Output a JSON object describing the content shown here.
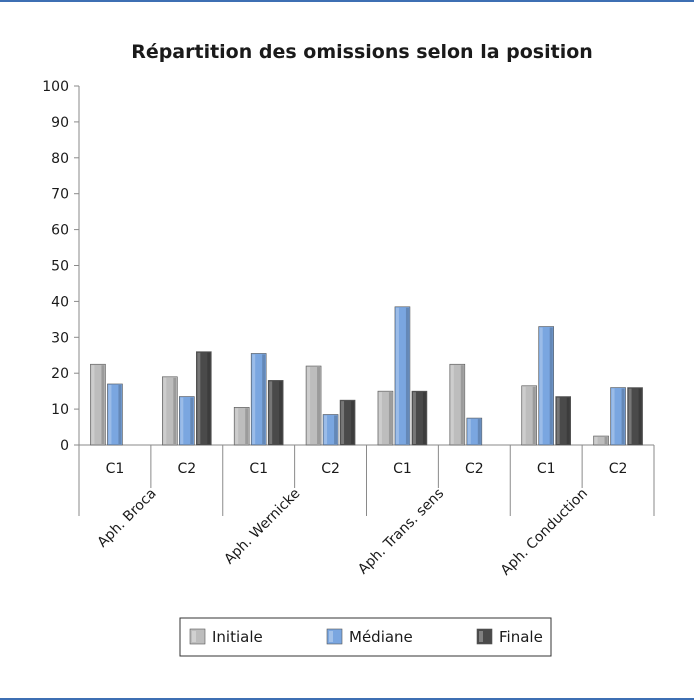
{
  "chart_data": {
    "type": "bar",
    "title": "Répartition  des omissions selon la position",
    "ylim": [
      0,
      100
    ],
    "yticks": [
      0,
      10,
      20,
      30,
      40,
      50,
      60,
      70,
      80,
      90,
      100
    ],
    "groups": [
      "Aph. Broca",
      "Aph. Wernicke",
      "Aph. Trans. sens",
      "Aph. Conduction"
    ],
    "categories": [
      "C1",
      "C2",
      "C1",
      "C2",
      "C1",
      "C2",
      "C1",
      "C2"
    ],
    "series": [
      {
        "name": "Initiale",
        "color": "#bdbdbd",
        "values": [
          22.5,
          19,
          10.5,
          22,
          15,
          22.5,
          16.5,
          2.5
        ]
      },
      {
        "name": "Médiane",
        "color": "#7aa6e0",
        "values": [
          17,
          13.5,
          25.5,
          8.5,
          38.5,
          7.5,
          33,
          16
        ]
      },
      {
        "name": "Finale",
        "color": "#4a4a4a",
        "values": [
          0,
          26,
          18,
          12.5,
          15,
          0,
          13.5,
          16
        ]
      }
    ],
    "grid": false,
    "legend_position": "bottom"
  }
}
